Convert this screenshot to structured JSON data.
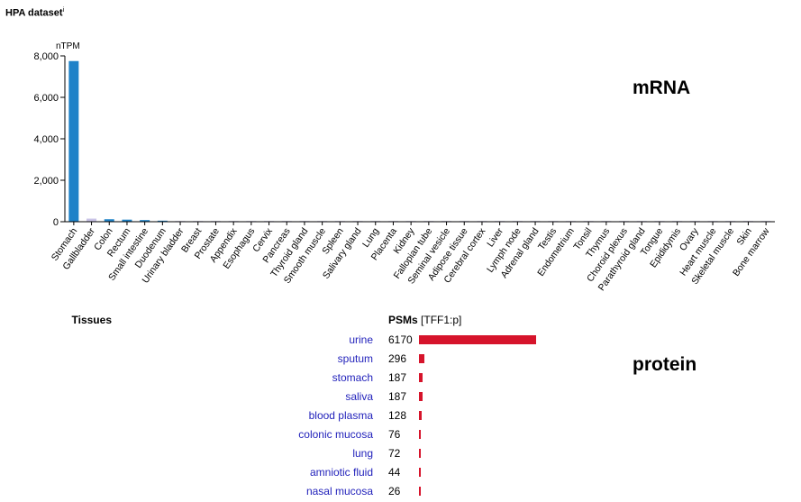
{
  "header": {
    "title": "HPA dataset",
    "info_mark": "i"
  },
  "labels": {
    "mrna": "mRNA",
    "protein": "protein"
  },
  "colors": {
    "stomach_bar": "#1e82c8",
    "minor_bar": "#c9c3e6",
    "psm_bar": "#d6142b",
    "tissue_link": "#2222bb"
  },
  "chart_data": {
    "type": "bar",
    "ylabel": "nTPM",
    "ylim": [
      0,
      8000
    ],
    "yticks": [
      "0",
      "2,000",
      "4,000",
      "6,000",
      "8,000"
    ],
    "ytick_values": [
      0,
      2000,
      4000,
      6000,
      8000
    ],
    "categories": [
      "Stomach",
      "Gallbladder",
      "Colon",
      "Rectum",
      "Small intestine",
      "Duodenum",
      "Urinary bladder",
      "Breast",
      "Prostate",
      "Appendix",
      "Esophagus",
      "Cervix",
      "Pancreas",
      "Thyroid gland",
      "Smooth muscle",
      "Spleen",
      "Salivary gland",
      "Lung",
      "Placenta",
      "Kidney",
      "Fallopian tube",
      "Seminal vesicle",
      "Adipose tissue",
      "Cerebral cortex",
      "Liver",
      "Lymph node",
      "Adrenal gland",
      "Testis",
      "Endometrium",
      "Tonsil",
      "Thymus",
      "Choroid plexus",
      "Parathyroid gland",
      "Tongue",
      "Epididymis",
      "Ovary",
      "Heart muscle",
      "Skeletal muscle",
      "Skin",
      "Bone marrow"
    ],
    "values": [
      7750,
      150,
      120,
      100,
      80,
      50,
      20,
      10,
      8,
      6,
      5,
      4,
      4,
      3,
      3,
      2,
      2,
      2,
      2,
      1,
      1,
      1,
      1,
      1,
      1,
      1,
      1,
      1,
      1,
      1,
      1,
      1,
      1,
      1,
      1,
      1,
      1,
      1,
      1,
      1
    ],
    "bar_colors": [
      "#1e82c8",
      "#c9c3e6",
      "#1e82c8",
      "#1e82c8",
      "#1e82c8",
      "#1e82c8",
      "#c9c3e6",
      "#c9c3e6",
      "#c9c3e6",
      "#c9c3e6",
      "#c9c3e6",
      "#c9c3e6",
      "#c9c3e6",
      "#c9c3e6",
      "#c9c3e6",
      "#c9c3e6",
      "#c9c3e6",
      "#c9c3e6",
      "#c9c3e6",
      "#c9c3e6",
      "#c9c3e6",
      "#c9c3e6",
      "#c9c3e6",
      "#c9c3e6",
      "#c9c3e6",
      "#c9c3e6",
      "#c9c3e6",
      "#c9c3e6",
      "#c9c3e6",
      "#c9c3e6",
      "#c9c3e6",
      "#c9c3e6",
      "#c9c3e6",
      "#c9c3e6",
      "#c9c3e6",
      "#c9c3e6",
      "#c9c3e6",
      "#c9c3e6",
      "#c9c3e6",
      "#c9c3e6"
    ]
  },
  "psm_table": {
    "tissues_header": "Tissues",
    "psm_header": "PSMs",
    "psm_header_suffix": "[TFF1:p]",
    "max": 6170,
    "rows": [
      {
        "tissue": "urine",
        "count": "6170",
        "value": 6170
      },
      {
        "tissue": "sputum",
        "count": "296",
        "value": 296
      },
      {
        "tissue": "stomach",
        "count": "187",
        "value": 187
      },
      {
        "tissue": "saliva",
        "count": "187",
        "value": 187
      },
      {
        "tissue": "blood plasma",
        "count": "128",
        "value": 128
      },
      {
        "tissue": "colonic mucosa",
        "count": "76",
        "value": 76
      },
      {
        "tissue": "lung",
        "count": "72",
        "value": 72
      },
      {
        "tissue": "amniotic fluid",
        "count": "44",
        "value": 44
      },
      {
        "tissue": "nasal mucosa",
        "count": "26",
        "value": 26
      }
    ]
  }
}
